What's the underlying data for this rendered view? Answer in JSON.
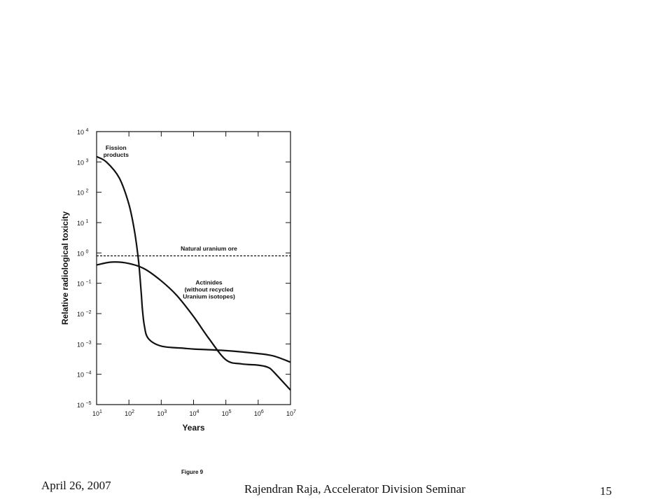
{
  "chart_data": {
    "type": "line",
    "xlabel": "Years",
    "ylabel": "Relative radiological toxicity",
    "x_scale": "log",
    "y_scale": "log",
    "xlim": [
      10,
      10000000
    ],
    "ylim": [
      1e-05,
      10000
    ],
    "x_ticks": [
      {
        "base": "10",
        "exp": "1"
      },
      {
        "base": "10",
        "exp": "2"
      },
      {
        "base": "10",
        "exp": "3"
      },
      {
        "base": "10",
        "exp": "4"
      },
      {
        "base": "10",
        "exp": "5"
      },
      {
        "base": "10",
        "exp": "6"
      },
      {
        "base": "10",
        "exp": "7"
      }
    ],
    "y_ticks": [
      {
        "base": "10",
        "exp": "−5"
      },
      {
        "base": "10",
        "exp": "−4"
      },
      {
        "base": "10",
        "exp": "−3"
      },
      {
        "base": "10",
        "exp": "−2"
      },
      {
        "base": "10",
        "exp": "−1"
      },
      {
        "base": "10",
        "exp": "0"
      },
      {
        "base": "10",
        "exp": "1"
      },
      {
        "base": "10",
        "exp": "2"
      },
      {
        "base": "10",
        "exp": "3"
      },
      {
        "base": "10",
        "exp": "4"
      }
    ],
    "grid": false,
    "legend": "none",
    "series": [
      {
        "name": "Fission products",
        "style": "solid",
        "x": [
          10,
          20,
          50,
          100,
          150,
          200,
          240,
          260,
          300,
          400,
          1000,
          5000,
          10000,
          100000,
          1000000,
          3000000,
          10000000
        ],
        "y": [
          1500,
          1000,
          300,
          40,
          5,
          0.5,
          0.05,
          0.015,
          0.004,
          0.0015,
          0.00085,
          0.00072,
          0.00068,
          0.0006,
          0.00048,
          0.0004,
          0.00025
        ]
      },
      {
        "name": "Actinides (without recycled Uranium isotopes)",
        "style": "solid",
        "x": [
          10,
          30,
          100,
          300,
          1000,
          3000,
          10000,
          30000,
          100000,
          300000,
          1000000,
          2000000,
          3000000,
          10000000
        ],
        "y": [
          0.4,
          0.5,
          0.45,
          0.3,
          0.12,
          0.04,
          0.008,
          0.0015,
          0.0003,
          0.00022,
          0.0002,
          0.00017,
          0.00012,
          3e-05
        ]
      },
      {
        "name": "Natural uranium ore",
        "style": "dashed",
        "x": [
          10,
          10000000
        ],
        "y": [
          0.8,
          0.8
        ]
      }
    ],
    "annotations": [
      {
        "lines": [
          "Fission",
          "products"
        ],
        "x": 40,
        "y": 2500
      },
      {
        "lines": [
          "Natural uranium ore"
        ],
        "x": 30000,
        "y": 1.2
      },
      {
        "lines": [
          "Actinides",
          "(without recycled",
          "Uranium isotopes)"
        ],
        "x": 30000,
        "y": 0.09
      }
    ]
  },
  "caption": "Figure 9",
  "footer": {
    "date": "April 26, 2007",
    "title": "Rajendran Raja, Accelerator Division Seminar",
    "page": "15"
  }
}
